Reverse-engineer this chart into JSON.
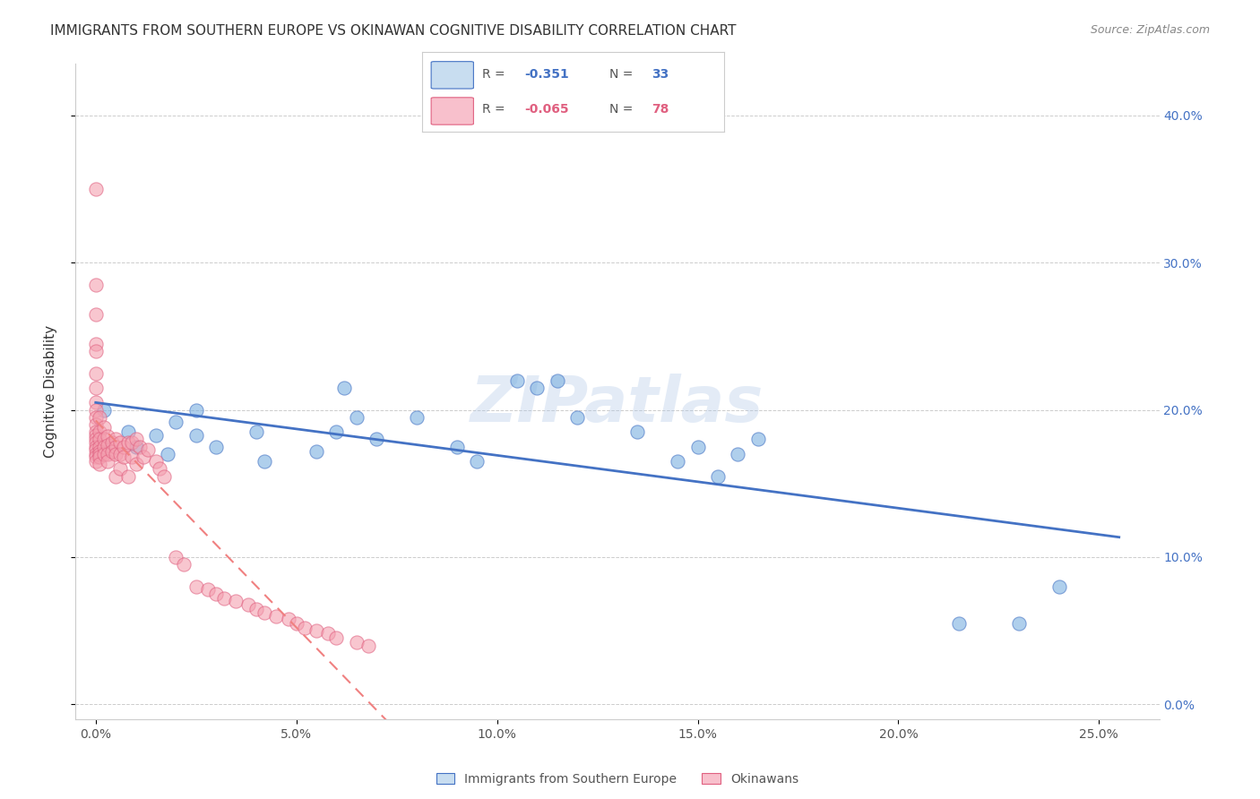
{
  "title": "IMMIGRANTS FROM SOUTHERN EUROPE VS OKINAWAN COGNITIVE DISABILITY CORRELATION CHART",
  "source": "Source: ZipAtlas.com",
  "xlabel_bottom": "",
  "ylabel": "Cognitive Disability",
  "x_ticks": [
    0.0,
    0.05,
    0.1,
    0.15,
    0.2,
    0.25
  ],
  "x_tick_labels": [
    "0.0%",
    "5.0%",
    "10.0%",
    "15.0%",
    "20.0%",
    "25.0%"
  ],
  "y_ticks": [
    0.0,
    0.1,
    0.2,
    0.3,
    0.4
  ],
  "y_tick_labels_right": [
    "0.0%",
    "10.0%",
    "20.0%",
    "30.0%",
    "40.0%"
  ],
  "xlim": [
    -0.005,
    0.265
  ],
  "ylim": [
    -0.01,
    0.435
  ],
  "blue_color": "#7ab0e0",
  "pink_color": "#f4a0b0",
  "blue_line_color": "#4472c4",
  "pink_line_color": "#f08080",
  "legend_R1": "-0.351",
  "legend_N1": "33",
  "legend_R2": "-0.065",
  "legend_N2": "78",
  "legend_label1": "Immigrants from Southern Europe",
  "legend_label2": "Okinawans",
  "blue_x": [
    0.002,
    0.002,
    0.008,
    0.01,
    0.015,
    0.018,
    0.02,
    0.025,
    0.025,
    0.03,
    0.04,
    0.042,
    0.055,
    0.06,
    0.062,
    0.065,
    0.07,
    0.08,
    0.09,
    0.095,
    0.105,
    0.11,
    0.115,
    0.12,
    0.135,
    0.145,
    0.15,
    0.155,
    0.16,
    0.165,
    0.215,
    0.23,
    0.24
  ],
  "blue_y": [
    0.175,
    0.2,
    0.185,
    0.175,
    0.183,
    0.17,
    0.192,
    0.2,
    0.183,
    0.175,
    0.185,
    0.165,
    0.172,
    0.185,
    0.215,
    0.195,
    0.18,
    0.195,
    0.175,
    0.165,
    0.22,
    0.215,
    0.22,
    0.195,
    0.185,
    0.165,
    0.175,
    0.155,
    0.17,
    0.18,
    0.055,
    0.055,
    0.08
  ],
  "pink_x": [
    0.0,
    0.0,
    0.0,
    0.0,
    0.0,
    0.0,
    0.0,
    0.0,
    0.0,
    0.0,
    0.0,
    0.0,
    0.0,
    0.0,
    0.0,
    0.0,
    0.0,
    0.0,
    0.0,
    0.0,
    0.001,
    0.001,
    0.001,
    0.001,
    0.001,
    0.001,
    0.001,
    0.001,
    0.002,
    0.002,
    0.002,
    0.002,
    0.003,
    0.003,
    0.003,
    0.003,
    0.004,
    0.004,
    0.005,
    0.005,
    0.005,
    0.005,
    0.006,
    0.006,
    0.006,
    0.007,
    0.007,
    0.008,
    0.008,
    0.009,
    0.009,
    0.01,
    0.01,
    0.011,
    0.012,
    0.013,
    0.015,
    0.016,
    0.017,
    0.02,
    0.022,
    0.025,
    0.028,
    0.03,
    0.032,
    0.035,
    0.038,
    0.04,
    0.042,
    0.045,
    0.048,
    0.05,
    0.052,
    0.055,
    0.058,
    0.06,
    0.065,
    0.068
  ],
  "pink_y": [
    0.35,
    0.285,
    0.265,
    0.245,
    0.24,
    0.225,
    0.215,
    0.205,
    0.2,
    0.195,
    0.19,
    0.185,
    0.183,
    0.18,
    0.178,
    0.175,
    0.173,
    0.17,
    0.168,
    0.165,
    0.195,
    0.185,
    0.18,
    0.175,
    0.172,
    0.17,
    0.168,
    0.163,
    0.188,
    0.18,
    0.175,
    0.17,
    0.182,
    0.176,
    0.17,
    0.165,
    0.178,
    0.172,
    0.18,
    0.175,
    0.17,
    0.155,
    0.178,
    0.17,
    0.16,
    0.175,
    0.168,
    0.178,
    0.155,
    0.178,
    0.168,
    0.18,
    0.163,
    0.175,
    0.168,
    0.173,
    0.165,
    0.16,
    0.155,
    0.1,
    0.095,
    0.08,
    0.078,
    0.075,
    0.072,
    0.07,
    0.068,
    0.065,
    0.062,
    0.06,
    0.058,
    0.055,
    0.052,
    0.05,
    0.048,
    0.045,
    0.042,
    0.04
  ],
  "watermark": "ZIPatlas",
  "background_color": "#ffffff",
  "grid_color": "#cccccc"
}
